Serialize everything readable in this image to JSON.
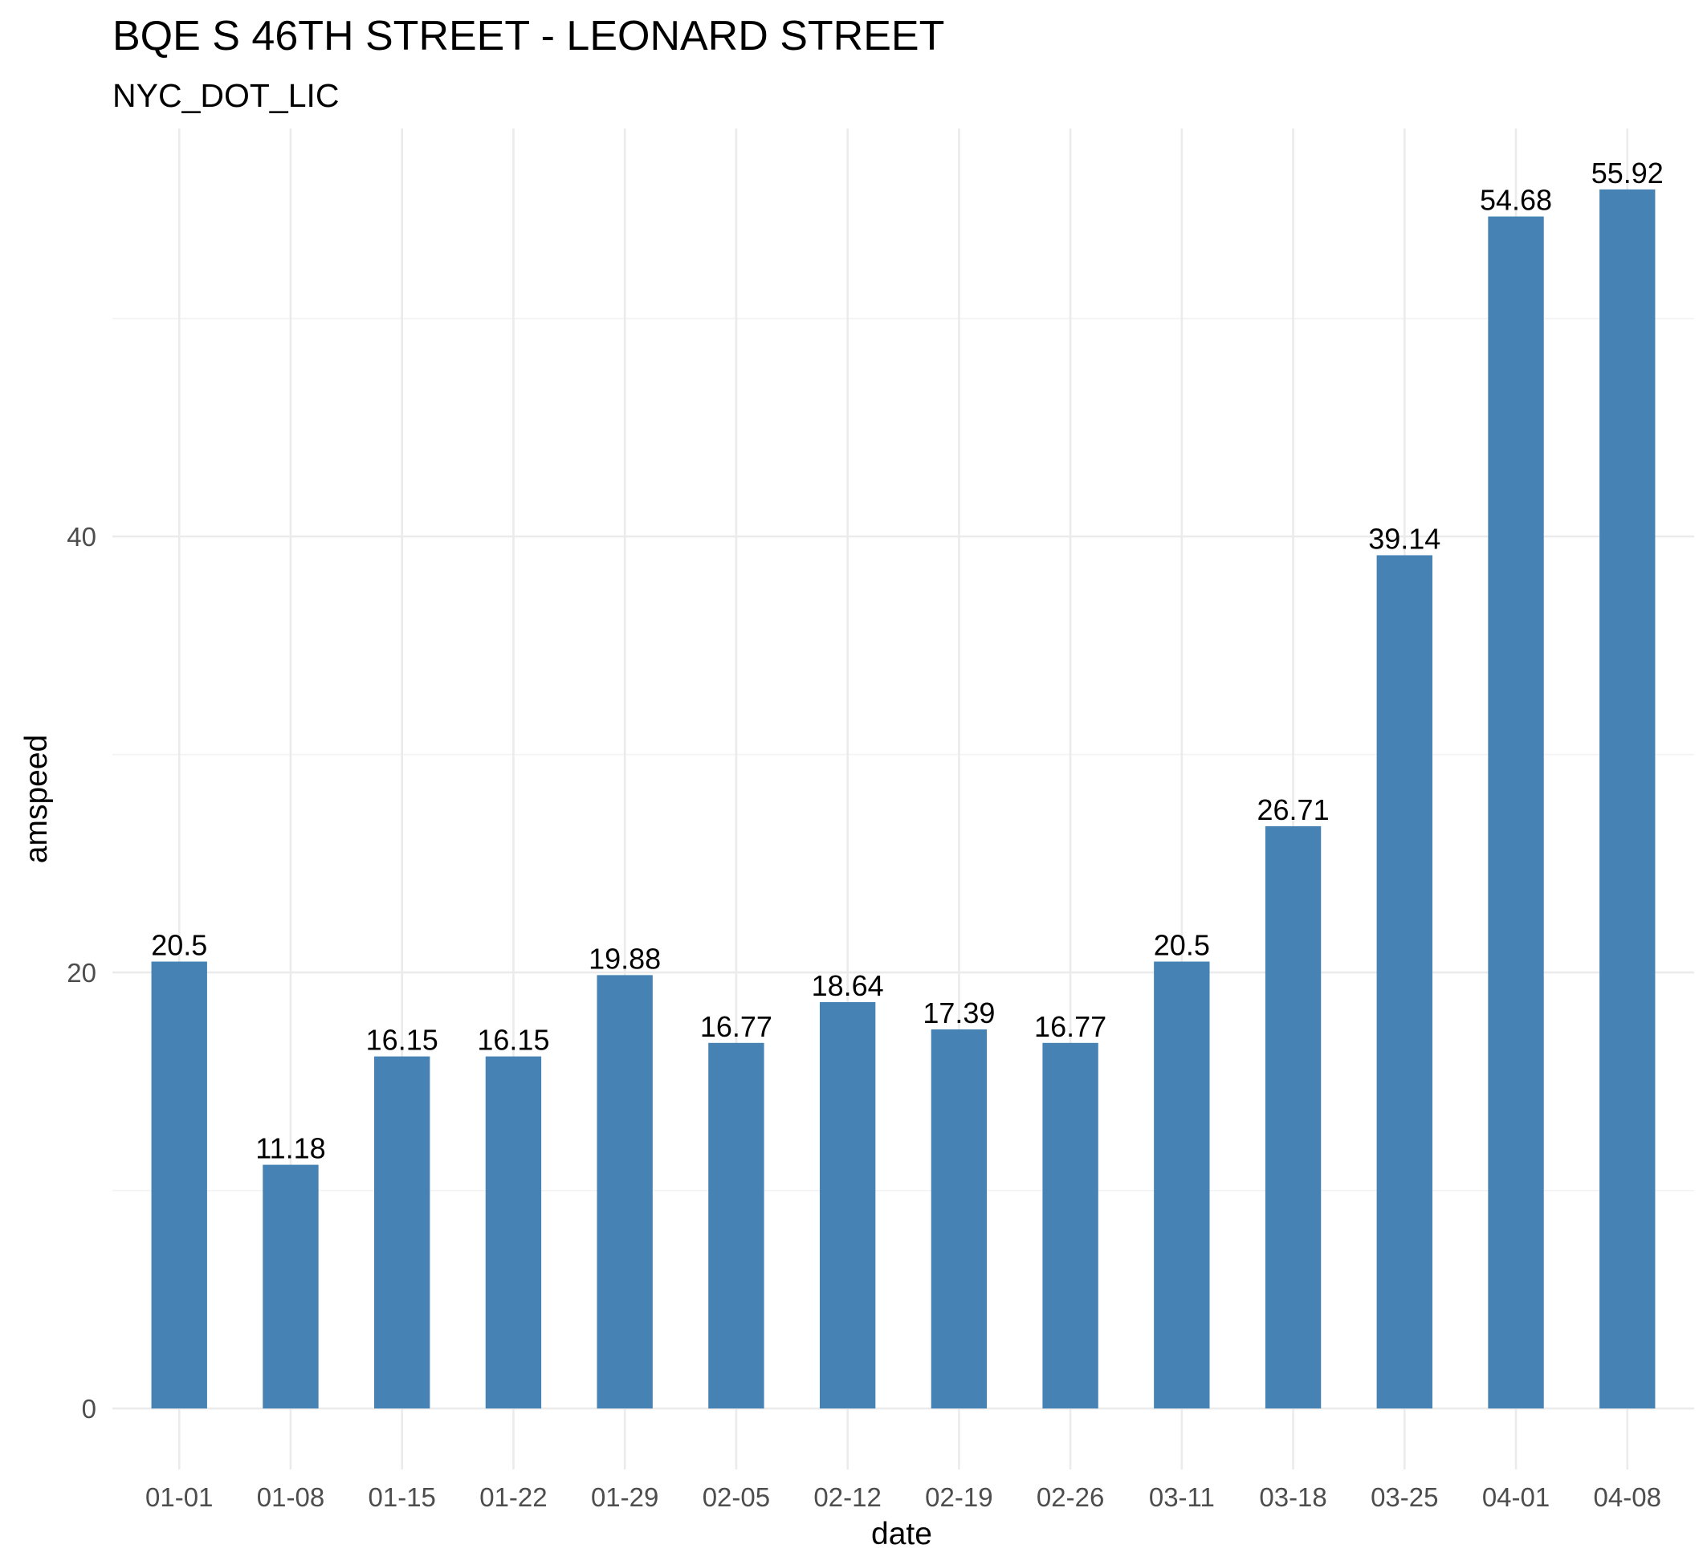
{
  "chart_data": {
    "type": "bar",
    "title": "BQE S 46TH STREET - LEONARD STREET",
    "subtitle": "NYC_DOT_LIC",
    "xlabel": "date",
    "ylabel": "amspeed",
    "categories": [
      "01-01",
      "01-08",
      "01-15",
      "01-22",
      "01-29",
      "02-05",
      "02-12",
      "02-19",
      "02-26",
      "03-11",
      "03-18",
      "03-25",
      "04-01",
      "04-08"
    ],
    "values": [
      20.5,
      11.18,
      16.15,
      16.15,
      19.88,
      16.77,
      18.64,
      17.39,
      16.77,
      20.5,
      26.71,
      39.14,
      54.68,
      55.92
    ],
    "data_labels": [
      "20.5",
      "11.18",
      "16.15",
      "16.15",
      "19.88",
      "16.77",
      "18.64",
      "17.39",
      "16.77",
      "20.5",
      "26.71",
      "39.14",
      "54.68",
      "55.92"
    ],
    "y_ticks": [
      0,
      20,
      40
    ],
    "y_minor_ticks": [
      10,
      30,
      50
    ],
    "ylim": [
      -2.796,
      58.716
    ],
    "grid": true,
    "legend": "none",
    "bar_color": "#4682b4"
  }
}
